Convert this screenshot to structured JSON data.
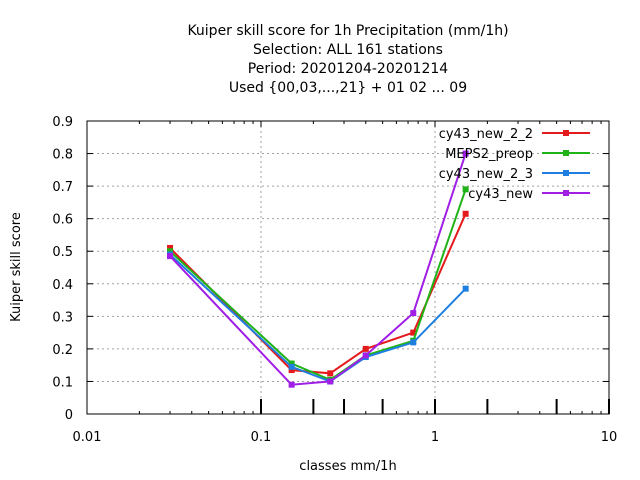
{
  "chart_data": {
    "type": "line",
    "title_lines": [
      "Kuiper skill score  for 1h Precipitation (mm/1h)",
      "Selection: ALL    161 stations",
      "Period: 20201204-20201214",
      "Used {00,03,...,21} + 01 02 ... 09"
    ],
    "xlabel": "classes mm/1h",
    "ylabel": "Kuiper skill score",
    "x_scale": "log",
    "xlim": [
      0.01,
      10
    ],
    "ylim": [
      0,
      0.9
    ],
    "x_ticks": [
      0.01,
      0.1,
      1,
      10
    ],
    "x_tick_labels": [
      "0.01",
      "0.1",
      "1",
      "10"
    ],
    "y_ticks": [
      0,
      0.1,
      0.2,
      0.3,
      0.4,
      0.5,
      0.6,
      0.7,
      0.8,
      0.9
    ],
    "y_tick_labels": [
      "0",
      "0.1",
      "0.2",
      "0.3",
      "0.4",
      "0.5",
      "0.6",
      "0.7",
      "0.8",
      "0.9"
    ],
    "grid": true,
    "legend_position": "top-right",
    "class_markers_x": [
      0.1,
      0.2,
      0.3,
      0.5,
      1,
      2,
      5,
      10
    ],
    "x": [
      0.03,
      0.15,
      0.25,
      0.4,
      0.75,
      1.5
    ],
    "series": [
      {
        "name": "cy43_new_2_2",
        "color": "#e41a1c",
        "values": [
          0.51,
          0.135,
          0.125,
          0.2,
          0.25,
          0.615
        ]
      },
      {
        "name": "MEPS2_preop",
        "color": "#1fb318",
        "values": [
          0.5,
          0.155,
          0.105,
          0.18,
          0.225,
          0.69
        ]
      },
      {
        "name": "cy43_new_2_3",
        "color": "#1e7fe0",
        "values": [
          0.49,
          0.145,
          0.1,
          0.175,
          0.22,
          0.385
        ]
      },
      {
        "name": "cy43_new",
        "color": "#a01ee6",
        "values": [
          0.485,
          0.09,
          0.1,
          0.18,
          0.31,
          0.8
        ]
      }
    ]
  }
}
